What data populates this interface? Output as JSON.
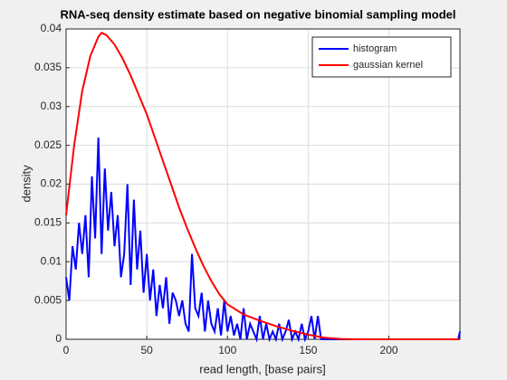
{
  "chart_data": {
    "type": "line",
    "title": "RNA-seq density estimate based on negative binomial sampling model",
    "xlabel": "read length, [base pairs]",
    "ylabel": "density",
    "xlim": [
      0,
      244
    ],
    "xticks": [
      0,
      50,
      100,
      150,
      200
    ],
    "ylim": [
      0,
      0.04
    ],
    "yticks": [
      0,
      0.005,
      0.01,
      0.015,
      0.02,
      0.025,
      0.03,
      0.035,
      0.04
    ],
    "grid": true,
    "legend": "northeast",
    "series": [
      {
        "name": "histogram",
        "color": "#0000ff",
        "x": [
          0,
          2,
          4,
          6,
          8,
          10,
          12,
          14,
          16,
          18,
          20,
          22,
          24,
          26,
          28,
          30,
          32,
          34,
          36,
          38,
          40,
          42,
          44,
          46,
          48,
          50,
          52,
          54,
          56,
          58,
          60,
          62,
          64,
          66,
          68,
          70,
          72,
          74,
          76,
          78,
          80,
          82,
          84,
          86,
          88,
          90,
          92,
          94,
          96,
          98,
          100,
          102,
          104,
          106,
          108,
          110,
          112,
          114,
          116,
          118,
          120,
          122,
          124,
          126,
          128,
          130,
          132,
          134,
          136,
          138,
          140,
          142,
          144,
          146,
          148,
          150,
          152,
          154,
          156,
          158,
          160,
          243,
          244
        ],
        "values": [
          0.008,
          0.005,
          0.012,
          0.009,
          0.015,
          0.011,
          0.016,
          0.008,
          0.021,
          0.013,
          0.026,
          0.011,
          0.022,
          0.014,
          0.019,
          0.012,
          0.016,
          0.008,
          0.011,
          0.02,
          0.007,
          0.018,
          0.009,
          0.014,
          0.006,
          0.011,
          0.005,
          0.009,
          0.003,
          0.007,
          0.004,
          0.008,
          0.002,
          0.006,
          0.005,
          0.003,
          0.005,
          0.002,
          0.001,
          0.011,
          0.004,
          0.003,
          0.006,
          0.001,
          0.005,
          0.002,
          0.001,
          0.004,
          0.0005,
          0.005,
          0.001,
          0.003,
          0.0005,
          0.002,
          0,
          0.004,
          0,
          0.002,
          0.001,
          0,
          0.003,
          0,
          0.002,
          0,
          0.001,
          0,
          0.002,
          0,
          0.001,
          0.0025,
          0,
          0.001,
          0,
          0.002,
          0,
          0.001,
          0.003,
          0,
          0.003,
          0,
          0,
          0,
          0.001
        ]
      },
      {
        "name": "gaussian kernel",
        "color": "#ff0000",
        "x": [
          0,
          5,
          10,
          15,
          20,
          22,
          25,
          30,
          35,
          40,
          45,
          50,
          55,
          60,
          65,
          70,
          75,
          80,
          85,
          90,
          95,
          100,
          110,
          120,
          130,
          140,
          150,
          160,
          170,
          180,
          200,
          244
        ],
        "values": [
          0.016,
          0.025,
          0.032,
          0.0365,
          0.039,
          0.0395,
          0.0392,
          0.038,
          0.0362,
          0.034,
          0.0315,
          0.029,
          0.026,
          0.023,
          0.02,
          0.017,
          0.0143,
          0.0118,
          0.0095,
          0.0075,
          0.0058,
          0.0045,
          0.0032,
          0.0024,
          0.0017,
          0.0011,
          0.0006,
          0.0002,
          5e-05,
          0,
          0,
          0
        ]
      }
    ]
  }
}
